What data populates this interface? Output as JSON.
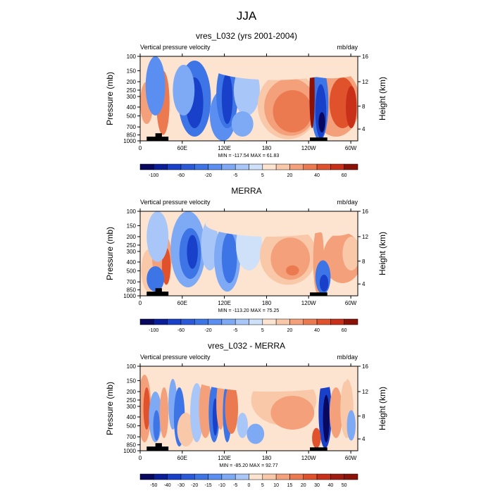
{
  "title": "JJA",
  "shared": {
    "ylabel_left": "Pressure (mb)",
    "ylabel_right": "Height (km)",
    "left_label": "Vertical pressure velocity",
    "right_label": "mb/day"
  },
  "chart_data": [
    {
      "type": "heatmap",
      "title": "vres_L032 (yrs 2001-2004)",
      "subtitle_left": "Vertical pressure velocity",
      "subtitle_right": "mb/day",
      "ylabel": "Pressure (mb)",
      "ylabel_right": "Height (km)",
      "x_ticks": [
        "0",
        "60E",
        "120E",
        "180",
        "120W",
        "60W"
      ],
      "y_ticks": [
        "100",
        "150",
        "200",
        "250",
        "300",
        "400",
        "500",
        "700",
        "850",
        "1000"
      ],
      "y_right_ticks": [
        "16",
        "12",
        "8",
        "4"
      ],
      "stats": "MIN = -117.54  MAX =  61.83",
      "colorbar_labels": [
        "-100",
        "-60",
        "-20",
        "-5",
        "5",
        "20",
        "40",
        "60"
      ],
      "colorbar_levels": [
        -120,
        -100,
        -80,
        -60,
        -40,
        -20,
        -10,
        -5,
        0,
        5,
        10,
        20,
        30,
        40,
        50,
        60
      ],
      "colormap": [
        "#08085e",
        "#0a1e9a",
        "#1840c8",
        "#2a5ad8",
        "#3d74e6",
        "#5a8ef0",
        "#7ea9f4",
        "#a8c6f7",
        "#cfe0f9",
        "#fde4d0",
        "#f9c8a8",
        "#f4a07a",
        "#ec7a50",
        "#e0522c",
        "#c8301a",
        "#8a1208"
      ],
      "min": -117.54,
      "max": 61.83
    },
    {
      "type": "heatmap",
      "title": "MERRA",
      "subtitle_left": "Vertical pressure velocity",
      "subtitle_right": "mb/day",
      "ylabel": "Pressure (mb)",
      "ylabel_right": "Height (km)",
      "x_ticks": [
        "0",
        "60E",
        "120E",
        "180",
        "120W",
        "60W"
      ],
      "y_ticks": [
        "100",
        "150",
        "200",
        "250",
        "300",
        "400",
        "500",
        "700",
        "850",
        "1000"
      ],
      "y_right_ticks": [
        "16",
        "12",
        "8",
        "4"
      ],
      "stats": "MIN = -113.20  MAX =  75.25",
      "colorbar_labels": [
        "-100",
        "-60",
        "-20",
        "-5",
        "5",
        "20",
        "40",
        "60"
      ],
      "colorbar_levels": [
        -120,
        -100,
        -80,
        -60,
        -40,
        -20,
        -10,
        -5,
        0,
        5,
        10,
        20,
        30,
        40,
        50,
        60
      ],
      "colormap": [
        "#08085e",
        "#0a1e9a",
        "#1840c8",
        "#2a5ad8",
        "#3d74e6",
        "#5a8ef0",
        "#7ea9f4",
        "#a8c6f7",
        "#cfe0f9",
        "#fde4d0",
        "#f9c8a8",
        "#f4a07a",
        "#ec7a50",
        "#e0522c",
        "#c8301a",
        "#8a1208"
      ],
      "min": -113.2,
      "max": 75.25
    },
    {
      "type": "heatmap",
      "title": "vres_L032 - MERRA",
      "subtitle_left": "Vertical pressure velocity",
      "subtitle_right": "mb/day",
      "ylabel": "Pressure (mb)",
      "ylabel_right": "Height (km)",
      "x_ticks": [
        "0",
        "60E",
        "120E",
        "180",
        "120W",
        "60W"
      ],
      "y_ticks": [
        "100",
        "150",
        "200",
        "250",
        "300",
        "400",
        "500",
        "700",
        "850",
        "1000"
      ],
      "y_right_ticks": [
        "16",
        "12",
        "8",
        "4"
      ],
      "stats": "MIN = -85.20  MAX =  92.77",
      "colorbar_labels": [
        "-50",
        "-40",
        "-30",
        "-20",
        "-15",
        "-10",
        "-5",
        "0",
        "5",
        "10",
        "15",
        "20",
        "30",
        "40",
        "50"
      ],
      "colorbar_levels": [
        -60,
        -50,
        -40,
        -30,
        -20,
        -15,
        -10,
        -5,
        0,
        5,
        10,
        15,
        20,
        30,
        40,
        50,
        60
      ],
      "colormap": [
        "#08085e",
        "#0a1e9a",
        "#1840c8",
        "#2a5ad8",
        "#3d74e6",
        "#5a8ef0",
        "#7ea9f4",
        "#a8c6f7",
        "#fde4d0",
        "#f9c8a8",
        "#f4a07a",
        "#ec7a50",
        "#e0522c",
        "#c8301a",
        "#a01c10",
        "#8a1208"
      ],
      "min": -85.2,
      "max": 92.77
    }
  ]
}
